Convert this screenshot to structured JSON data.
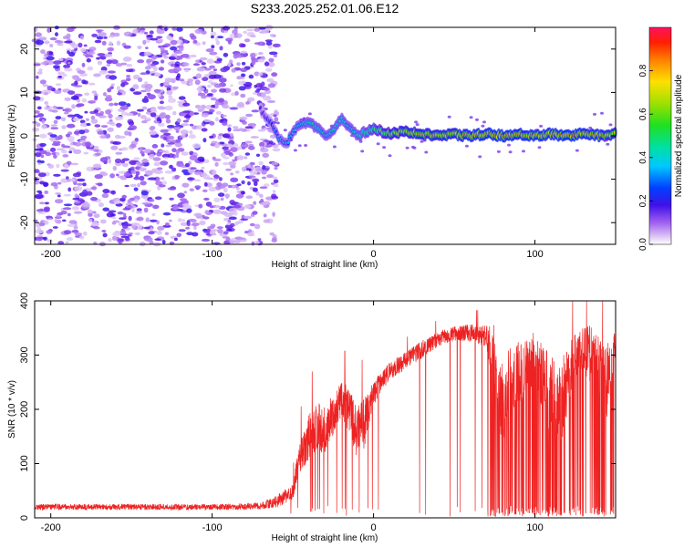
{
  "figure_title": "S233.2025.252.01.06.E12",
  "chart_data": [
    {
      "type": "heatmap",
      "title": "S233.2025.252.01.06.E12",
      "xlabel": "Height of straight line (km)",
      "ylabel": "Frequency (Hz)",
      "xlim": [
        -210,
        150
      ],
      "ylim": [
        -25,
        25
      ],
      "x_ticks": [
        -200,
        -100,
        0,
        100
      ],
      "y_ticks": [
        -20,
        -10,
        0,
        10,
        20
      ],
      "colorbar": {
        "label": "Normalized spectral amplitude",
        "range": [
          0,
          1
        ],
        "ticks": [
          0.0,
          0.2,
          0.4,
          0.6,
          0.8
        ]
      },
      "noise_region_x": [
        -210,
        -60
      ],
      "noise_amplitude_range": [
        0.05,
        0.25
      ],
      "signal_ridge": {
        "x": [
          -70,
          -66,
          -62,
          -58,
          -54,
          -50,
          -45,
          -40,
          -35,
          -30,
          -25,
          -20,
          -15,
          -10,
          -5,
          0,
          10,
          20,
          30,
          40,
          50,
          60,
          70,
          80,
          90,
          100,
          110,
          120,
          130,
          140,
          150
        ],
        "frequency": [
          6,
          4,
          2,
          -1,
          -2,
          1,
          3,
          3,
          2,
          0,
          1,
          4,
          2,
          0,
          1,
          1.5,
          0.5,
          1,
          0.5,
          0,
          0.3,
          0,
          0.5,
          0,
          0.3,
          0,
          0.5,
          0,
          0.5,
          0,
          0.5
        ],
        "amplitude": [
          0.25,
          0.3,
          0.35,
          0.4,
          0.4,
          0.45,
          0.45,
          0.5,
          0.5,
          0.45,
          0.5,
          0.5,
          0.45,
          0.5,
          0.55,
          0.6,
          0.7,
          0.75,
          0.8,
          0.8,
          0.8,
          0.85,
          0.85,
          0.9,
          0.85,
          0.85,
          0.85,
          0.9,
          0.85,
          0.85,
          0.8
        ]
      }
    },
    {
      "type": "line",
      "xlabel": "Height of straight line (km)",
      "ylabel": "SNR (10 * v/v)",
      "xlim": [
        -210,
        150
      ],
      "ylim": [
        0,
        400
      ],
      "x_ticks": [
        -200,
        -100,
        0,
        100
      ],
      "y_ticks": [
        0,
        100,
        200,
        300,
        400
      ],
      "series": [
        {
          "name": "SNR",
          "color": "#ee2222",
          "x": [
            -210,
            -180,
            -150,
            -120,
            -90,
            -70,
            -60,
            -50,
            -45,
            -40,
            -35,
            -30,
            -25,
            -20,
            -15,
            -10,
            -5,
            0,
            10,
            20,
            30,
            40,
            50,
            60,
            70,
            75,
            78,
            85,
            95,
            100,
            105,
            110,
            115,
            120,
            125,
            130,
            135,
            140,
            145,
            150
          ],
          "baseline": [
            20,
            20,
            20,
            20,
            20,
            22,
            30,
            50,
            120,
            150,
            170,
            160,
            190,
            220,
            200,
            150,
            180,
            230,
            270,
            290,
            310,
            330,
            340,
            340,
            335,
            290,
            200,
            250,
            280,
            300,
            250,
            230,
            200,
            250,
            300,
            310,
            300,
            290,
            250,
            320
          ],
          "spread": [
            10,
            10,
            10,
            10,
            10,
            12,
            20,
            30,
            60,
            80,
            80,
            80,
            70,
            60,
            80,
            100,
            80,
            40,
            30,
            30,
            30,
            25,
            25,
            30,
            35,
            120,
            150,
            120,
            100,
            80,
            120,
            150,
            150,
            120,
            80,
            80,
            100,
            120,
            130,
            50
          ],
          "dropout_rate": [
            0,
            0,
            0,
            0,
            0,
            0,
            0,
            0.05,
            0.05,
            0.05,
            0.04,
            0.04,
            0.04,
            0.04,
            0.05,
            0.05,
            0.05,
            0.02,
            0.01,
            0.01,
            0.01,
            0.01,
            0.01,
            0.01,
            0.02,
            0.25,
            0.3,
            0.25,
            0.2,
            0.18,
            0.25,
            0.3,
            0.3,
            0.25,
            0.2,
            0.2,
            0.25,
            0.3,
            0.3,
            0.1
          ]
        }
      ]
    }
  ]
}
